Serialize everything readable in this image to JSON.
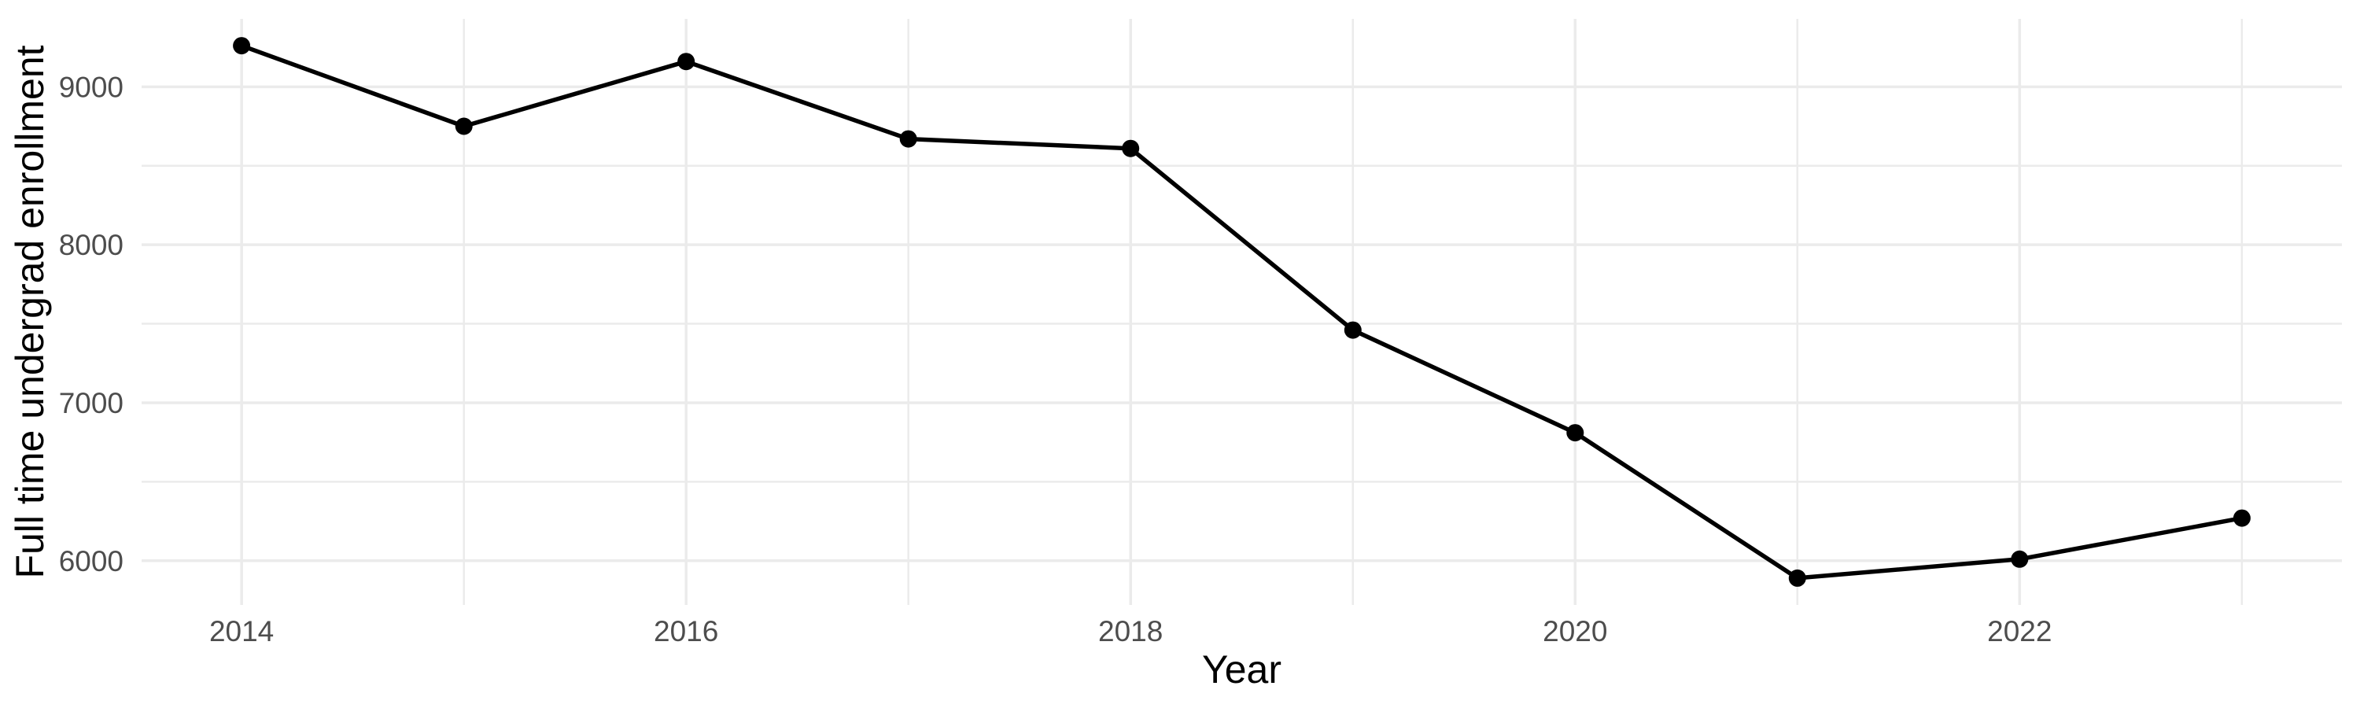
{
  "chart_data": {
    "type": "line",
    "title": "",
    "xlabel": "Year",
    "ylabel": "Full time undergrad enrollment",
    "x": [
      2014,
      2015,
      2016,
      2017,
      2018,
      2019,
      2020,
      2021,
      2022,
      2023
    ],
    "series": [
      {
        "name": "Full time undergrad enrollment",
        "values": [
          9260,
          8750,
          9160,
          8670,
          8610,
          7460,
          6810,
          5890,
          6010,
          6270
        ]
      }
    ],
    "x_ticks_labeled": [
      2014,
      2016,
      2018,
      2020,
      2022
    ],
    "x_ticks_minor": [
      2015,
      2017,
      2019,
      2021,
      2023
    ],
    "y_ticks_labeled": [
      6000,
      7000,
      8000,
      9000
    ],
    "y_ticks_minor": [
      6500,
      7500,
      8500
    ],
    "xlim": [
      2013.55,
      2023.45
    ],
    "ylim": [
      5720,
      9430
    ],
    "grid": "on",
    "legend": "none",
    "style": {
      "background": "#ffffff",
      "line_color": "#000000",
      "point_color": "#000000",
      "grid_major_color": "#ebebeb",
      "grid_minor_color": "#ebebeb",
      "tick_label_color": "#4d4d4d",
      "axis_title_color": "#000000"
    }
  }
}
